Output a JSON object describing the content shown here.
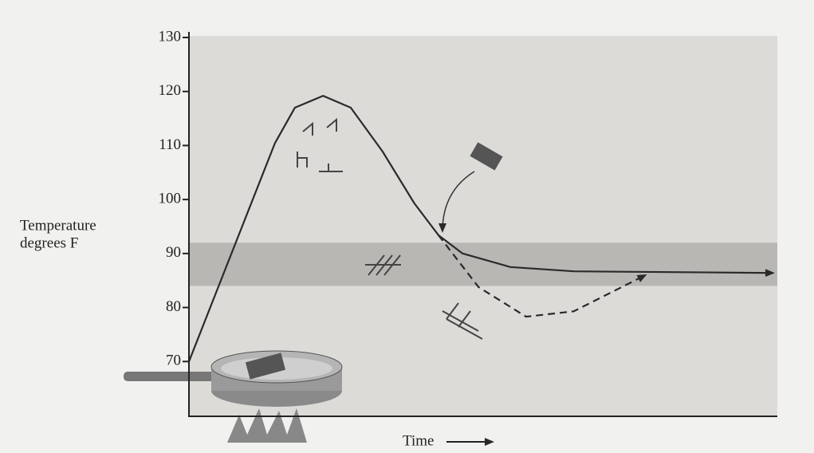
{
  "chart_data": {
    "type": "line",
    "ylabel": [
      "Temperature",
      "degrees F"
    ],
    "xlabel": "Time",
    "xlim": [
      0,
      100
    ],
    "ylim": [
      60,
      130
    ],
    "yticks": [
      70,
      80,
      90,
      100,
      110,
      120,
      130
    ],
    "band": [
      84,
      92
    ],
    "series": [
      {
        "color": "#2a2a2a",
        "style": "solid",
        "x": [
          0,
          14.6,
          18,
          22.8,
          27.5,
          32.9,
          38.3,
          42.4,
          46.5,
          54.6,
          65.4,
          99.3
        ],
        "values": [
          70,
          110.4,
          117,
          119.2,
          117,
          108.9,
          99.3,
          93.4,
          90,
          87.5,
          86.7,
          86.4
        ]
      },
      {
        "color": "#2a2a2a",
        "style": "dashed",
        "x": [
          42.4,
          49.2,
          57.3,
          65.4,
          77.6
        ],
        "values": [
          93.4,
          83.8,
          78.3,
          79.3,
          86
        ]
      }
    ]
  }
}
